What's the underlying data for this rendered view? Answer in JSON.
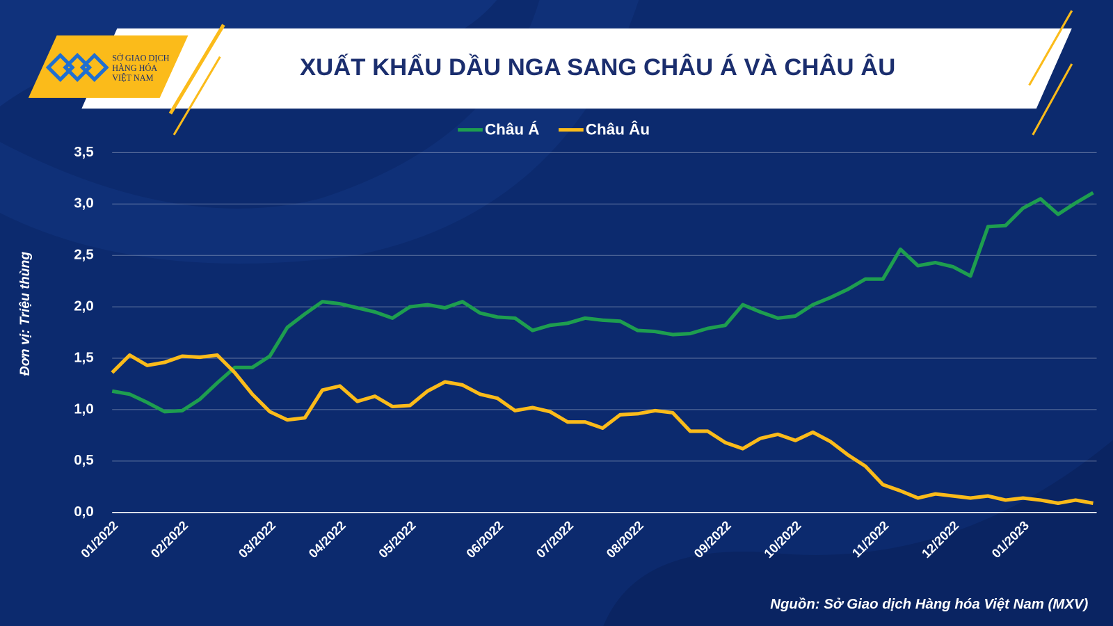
{
  "chart_data": {
    "type": "line",
    "title": "XUẤT KHẨU DẦU NGA SANG CHÂU Á VÀ CHÂU ÂU",
    "logo": [
      "SỞ GIAO DỊCH",
      "HÀNG HÓA",
      "VIỆT NAM"
    ],
    "y_label": "Đơn vị: Triệu thùng",
    "source": "Nguồn: Sở Giao dịch Hàng hóa Việt Nam (MXV)",
    "categories": [
      "01/2022",
      null,
      null,
      null,
      "02/2022",
      null,
      null,
      null,
      null,
      "03/2022",
      null,
      null,
      null,
      "04/2022",
      null,
      null,
      null,
      "05/2022",
      null,
      null,
      null,
      null,
      "06/2022",
      null,
      null,
      null,
      "07/2022",
      null,
      null,
      null,
      "08/2022",
      null,
      null,
      null,
      null,
      "09/2022",
      null,
      null,
      null,
      "10/2022",
      null,
      null,
      null,
      null,
      "11/2022",
      null,
      null,
      null,
      "12/2022",
      null,
      null,
      null,
      "01/2023",
      null,
      null,
      null,
      null
    ],
    "series": [
      {
        "name": "Châu Á",
        "color": "#1e9e4f",
        "values": [
          1.18,
          1.15,
          1.07,
          0.98,
          0.99,
          1.1,
          1.26,
          1.41,
          1.41,
          1.52,
          1.8,
          1.93,
          2.05,
          2.03,
          1.99,
          1.95,
          1.89,
          2.0,
          2.02,
          1.99,
          2.05,
          1.94,
          1.9,
          1.89,
          1.77,
          1.82,
          1.84,
          1.89,
          1.87,
          1.86,
          1.77,
          1.76,
          1.73,
          1.74,
          1.79,
          1.82,
          2.02,
          1.95,
          1.89,
          1.91,
          2.02,
          2.09,
          2.17,
          2.27,
          2.27,
          2.56,
          2.4,
          2.43,
          2.39,
          2.3,
          2.78,
          2.79,
          2.96,
          3.05,
          2.9,
          3.01,
          3.11
        ]
      },
      {
        "name": "Châu Âu",
        "color": "#fbbb1a",
        "values": [
          1.36,
          1.53,
          1.43,
          1.46,
          1.52,
          1.51,
          1.53,
          1.36,
          1.15,
          0.98,
          0.9,
          0.92,
          1.19,
          1.23,
          1.08,
          1.13,
          1.03,
          1.04,
          1.18,
          1.27,
          1.24,
          1.15,
          1.11,
          0.99,
          1.02,
          0.98,
          0.88,
          0.88,
          0.82,
          0.95,
          0.96,
          0.99,
          0.97,
          0.79,
          0.79,
          0.68,
          0.62,
          0.72,
          0.76,
          0.7,
          0.78,
          0.69,
          0.56,
          0.45,
          0.27,
          0.21,
          0.14,
          0.18,
          0.16,
          0.14,
          0.16,
          0.12,
          0.14,
          0.12,
          0.09,
          0.12,
          0.09
        ]
      }
    ],
    "ylim": [
      0,
      3.5
    ],
    "yticks": [
      {
        "value": 0,
        "label": "0,0"
      },
      {
        "value": 0.5,
        "label": "0,5"
      },
      {
        "value": 1,
        "label": "1,0"
      },
      {
        "value": 1.5,
        "label": "1,5"
      },
      {
        "value": 2,
        "label": "2,0"
      },
      {
        "value": 2.5,
        "label": "2,5"
      },
      {
        "value": 3,
        "label": "3,0"
      },
      {
        "value": 3.5,
        "label": "3,5"
      }
    ],
    "grid": true
  }
}
